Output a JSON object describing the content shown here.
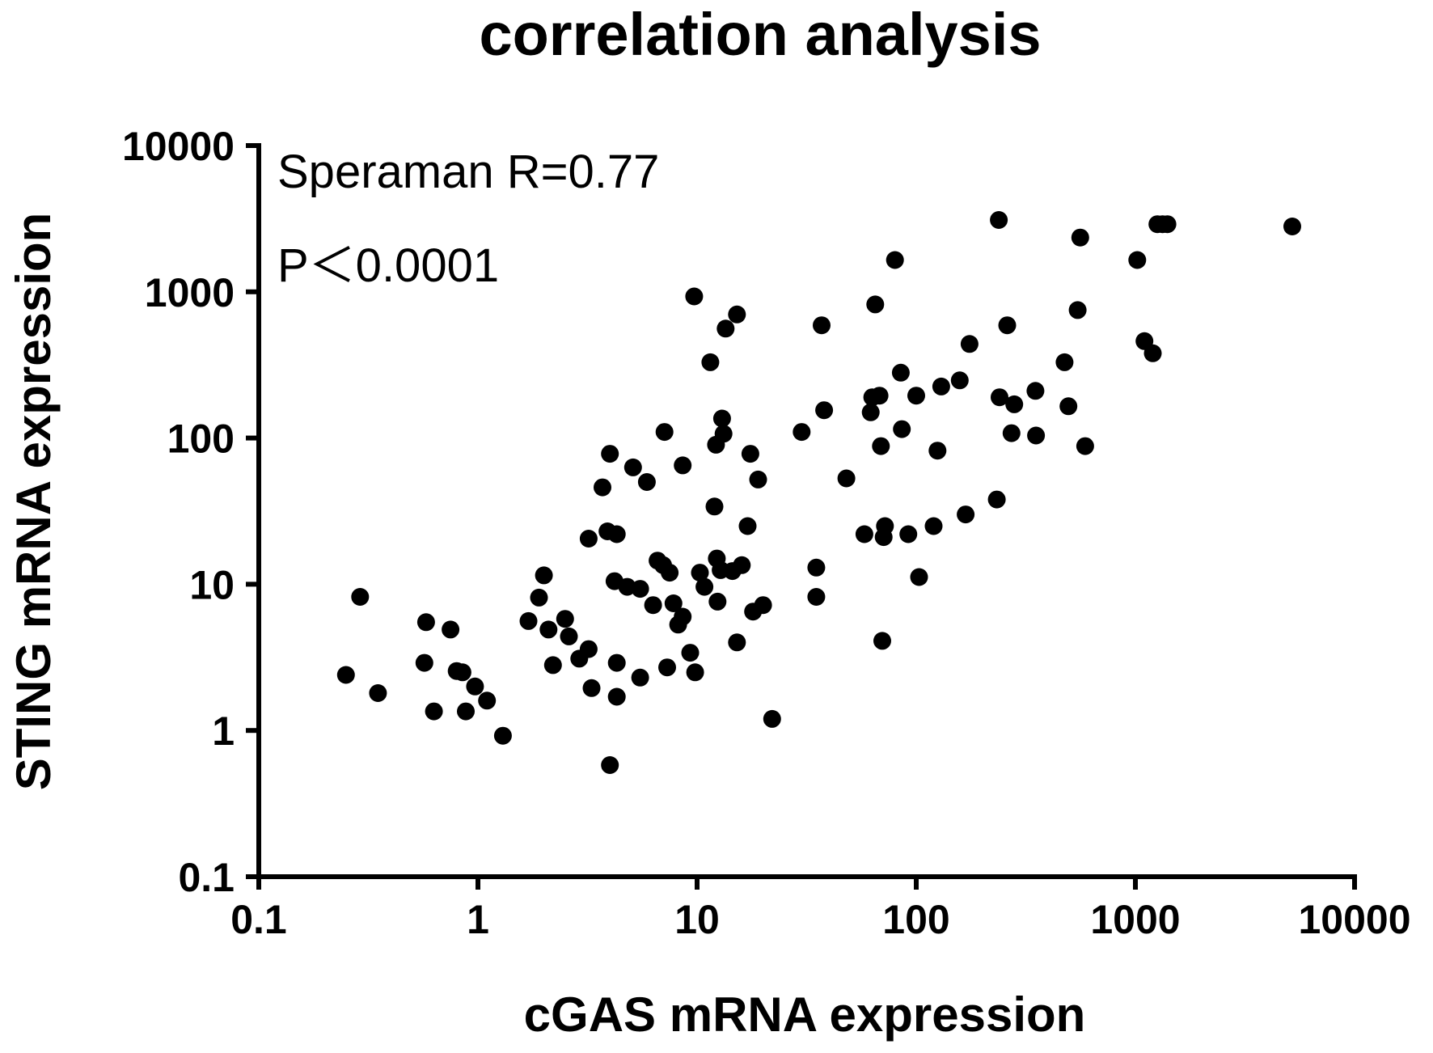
{
  "chart_data": {
    "type": "scatter",
    "title": "correlation analysis",
    "xlabel": "cGAS mRNA expression",
    "ylabel": "STING mRNA expression",
    "xscale": "log",
    "yscale": "log",
    "xlim": [
      0.1,
      10000
    ],
    "ylim": [
      0.1,
      10000
    ],
    "xticks": [
      "0.1",
      "1",
      "10",
      "100",
      "1000",
      "10000"
    ],
    "yticks": [
      "0.1",
      "1",
      "10",
      "100",
      "1000",
      "10000"
    ],
    "grid": false,
    "annotations": [
      "Speraman R=0.77",
      "P＜0.0001"
    ],
    "marker_color": "#000000",
    "points": [
      {
        "x": 0.25,
        "y": 2.4
      },
      {
        "x": 0.29,
        "y": 8.2
      },
      {
        "x": 0.35,
        "y": 1.8
      },
      {
        "x": 0.58,
        "y": 5.5
      },
      {
        "x": 0.57,
        "y": 2.9
      },
      {
        "x": 0.63,
        "y": 1.35
      },
      {
        "x": 0.75,
        "y": 4.9
      },
      {
        "x": 0.8,
        "y": 2.55
      },
      {
        "x": 0.85,
        "y": 2.5
      },
      {
        "x": 0.88,
        "y": 1.35
      },
      {
        "x": 0.97,
        "y": 2.0
      },
      {
        "x": 1.1,
        "y": 1.6
      },
      {
        "x": 1.3,
        "y": 0.92
      },
      {
        "x": 1.7,
        "y": 5.6
      },
      {
        "x": 1.9,
        "y": 8.1
      },
      {
        "x": 2.0,
        "y": 11.5
      },
      {
        "x": 2.1,
        "y": 4.9
      },
      {
        "x": 2.2,
        "y": 2.8
      },
      {
        "x": 2.5,
        "y": 5.8
      },
      {
        "x": 2.6,
        "y": 4.4
      },
      {
        "x": 2.9,
        "y": 3.1
      },
      {
        "x": 3.2,
        "y": 3.6
      },
      {
        "x": 3.3,
        "y": 1.95
      },
      {
        "x": 3.2,
        "y": 20.5
      },
      {
        "x": 3.7,
        "y": 46
      },
      {
        "x": 3.9,
        "y": 23
      },
      {
        "x": 4.0,
        "y": 78
      },
      {
        "x": 4.3,
        "y": 22
      },
      {
        "x": 4.2,
        "y": 10.5
      },
      {
        "x": 4.3,
        "y": 2.9
      },
      {
        "x": 4.3,
        "y": 1.7
      },
      {
        "x": 4.0,
        "y": 0.58
      },
      {
        "x": 4.8,
        "y": 9.6
      },
      {
        "x": 5.1,
        "y": 63
      },
      {
        "x": 5.5,
        "y": 9.3
      },
      {
        "x": 5.5,
        "y": 2.3
      },
      {
        "x": 5.9,
        "y": 50
      },
      {
        "x": 6.3,
        "y": 7.2
      },
      {
        "x": 6.6,
        "y": 14.5
      },
      {
        "x": 7.1,
        "y": 110
      },
      {
        "x": 7.0,
        "y": 13.5
      },
      {
        "x": 7.5,
        "y": 12
      },
      {
        "x": 7.3,
        "y": 2.7
      },
      {
        "x": 7.8,
        "y": 7.4
      },
      {
        "x": 8.2,
        "y": 5.3
      },
      {
        "x": 8.6,
        "y": 65
      },
      {
        "x": 8.6,
        "y": 6.0
      },
      {
        "x": 9.3,
        "y": 3.4
      },
      {
        "x": 9.7,
        "y": 930
      },
      {
        "x": 9.8,
        "y": 2.5
      },
      {
        "x": 10.3,
        "y": 12
      },
      {
        "x": 10.8,
        "y": 9.6
      },
      {
        "x": 11.5,
        "y": 330
      },
      {
        "x": 12.2,
        "y": 90
      },
      {
        "x": 12.0,
        "y": 34
      },
      {
        "x": 12.3,
        "y": 15
      },
      {
        "x": 12.4,
        "y": 7.6
      },
      {
        "x": 12.8,
        "y": 12.5
      },
      {
        "x": 13.2,
        "y": 107
      },
      {
        "x": 13.0,
        "y": 136
      },
      {
        "x": 13.5,
        "y": 560
      },
      {
        "x": 14.5,
        "y": 12.3
      },
      {
        "x": 15.2,
        "y": 700
      },
      {
        "x": 15.2,
        "y": 4.0
      },
      {
        "x": 16.0,
        "y": 13.5
      },
      {
        "x": 17.0,
        "y": 25
      },
      {
        "x": 17.5,
        "y": 78
      },
      {
        "x": 18.0,
        "y": 6.5
      },
      {
        "x": 19.0,
        "y": 52
      },
      {
        "x": 20.0,
        "y": 7.2
      },
      {
        "x": 22.0,
        "y": 1.2
      },
      {
        "x": 30.0,
        "y": 110
      },
      {
        "x": 35.0,
        "y": 13
      },
      {
        "x": 35.0,
        "y": 8.2
      },
      {
        "x": 37.0,
        "y": 590
      },
      {
        "x": 38.0,
        "y": 155
      },
      {
        "x": 48.0,
        "y": 53
      },
      {
        "x": 58.0,
        "y": 22
      },
      {
        "x": 62.0,
        "y": 150
      },
      {
        "x": 63.0,
        "y": 190
      },
      {
        "x": 65.0,
        "y": 820
      },
      {
        "x": 68.0,
        "y": 195
      },
      {
        "x": 69.0,
        "y": 88
      },
      {
        "x": 70.0,
        "y": 4.1
      },
      {
        "x": 71.0,
        "y": 21
      },
      {
        "x": 72.0,
        "y": 25
      },
      {
        "x": 80.0,
        "y": 1650
      },
      {
        "x": 85.0,
        "y": 280
      },
      {
        "x": 86.0,
        "y": 115
      },
      {
        "x": 92.0,
        "y": 22
      },
      {
        "x": 100.0,
        "y": 195
      },
      {
        "x": 103.0,
        "y": 11.2
      },
      {
        "x": 120.0,
        "y": 25
      },
      {
        "x": 125.0,
        "y": 82
      },
      {
        "x": 130.0,
        "y": 225
      },
      {
        "x": 158.0,
        "y": 248
      },
      {
        "x": 168.0,
        "y": 30
      },
      {
        "x": 175.0,
        "y": 440
      },
      {
        "x": 233.0,
        "y": 38
      },
      {
        "x": 238.0,
        "y": 3100
      },
      {
        "x": 240.0,
        "y": 190
      },
      {
        "x": 260.0,
        "y": 590
      },
      {
        "x": 272.0,
        "y": 108
      },
      {
        "x": 280.0,
        "y": 170
      },
      {
        "x": 350.0,
        "y": 210
      },
      {
        "x": 352.0,
        "y": 104
      },
      {
        "x": 475.0,
        "y": 330
      },
      {
        "x": 495.0,
        "y": 165
      },
      {
        "x": 545.0,
        "y": 750
      },
      {
        "x": 560.0,
        "y": 2350
      },
      {
        "x": 590.0,
        "y": 88
      },
      {
        "x": 1020.0,
        "y": 1650
      },
      {
        "x": 1100.0,
        "y": 460
      },
      {
        "x": 1200.0,
        "y": 380
      },
      {
        "x": 1260.0,
        "y": 2900
      },
      {
        "x": 1330.0,
        "y": 2900
      },
      {
        "x": 1400.0,
        "y": 2900
      },
      {
        "x": 5200.0,
        "y": 2800
      }
    ]
  }
}
